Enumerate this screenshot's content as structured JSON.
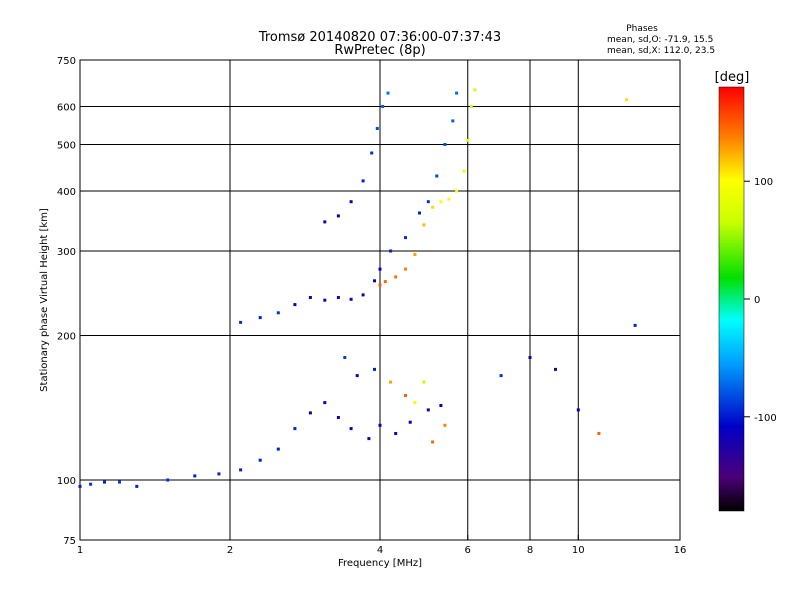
{
  "title_line1": "Tromsø 20140820 07:36:00-07:37:43",
  "title_line2": "RwPretec (8p)",
  "phases": {
    "heading": "Phases",
    "line1": "mean, sd,O: -71.9, 15.5",
    "line2": "mean, sd,X: 112.0, 23.5"
  },
  "colorbar": {
    "label": "[deg]",
    "tick_labels": [
      "100",
      "0",
      "-100"
    ],
    "tick_values": [
      100,
      0,
      -100
    ],
    "range": [
      -180,
      180
    ]
  },
  "chart_data": {
    "type": "scatter",
    "xlabel": "Frequency [MHz]",
    "ylabel": "Stationary phase Virtual Height [km]",
    "x_scale": "log2",
    "y_scale": "log",
    "xlim": [
      1,
      16
    ],
    "ylim": [
      75,
      750
    ],
    "x_tick_labels": [
      "1",
      "2",
      "4",
      "6",
      "8",
      "10",
      "16"
    ],
    "x_tick_values": [
      1,
      2,
      4,
      6,
      8,
      10,
      16
    ],
    "x_major_grid": [
      2,
      4,
      6,
      8,
      10
    ],
    "y_tick_labels": [
      "750",
      "600",
      "500",
      "400",
      "300",
      "200",
      "100",
      "75"
    ],
    "y_tick_values": [
      750,
      600,
      500,
      400,
      300,
      200,
      100,
      75
    ],
    "y_major_grid": [
      600,
      500,
      400,
      300,
      200,
      100
    ],
    "grid": true,
    "series": [
      {
        "points": [
          [
            1.0,
            97,
            -100
          ],
          [
            1.05,
            98,
            -95
          ],
          [
            1.12,
            99,
            -100
          ],
          [
            1.2,
            99,
            -90
          ],
          [
            1.3,
            97,
            -100
          ],
          [
            1.5,
            100,
            -95
          ],
          [
            1.7,
            102,
            -100
          ],
          [
            1.9,
            103,
            -100
          ],
          [
            2.1,
            105,
            -100
          ],
          [
            2.3,
            110,
            -100
          ],
          [
            2.5,
            116,
            -100
          ],
          [
            2.7,
            128,
            -100
          ],
          [
            2.9,
            138,
            -120
          ],
          [
            3.1,
            145,
            -110
          ],
          [
            3.3,
            135,
            -120
          ],
          [
            3.5,
            128,
            -110
          ],
          [
            3.8,
            122,
            -120
          ],
          [
            4.0,
            130,
            -115
          ],
          [
            4.3,
            125,
            -120
          ],
          [
            4.6,
            132,
            -110
          ],
          [
            5.0,
            140,
            -120
          ],
          [
            5.3,
            143,
            -110
          ]
        ]
      },
      {
        "points": [
          [
            2.1,
            213,
            -95
          ],
          [
            2.3,
            218,
            -100
          ],
          [
            2.5,
            223,
            -95
          ],
          [
            2.7,
            232,
            -110
          ],
          [
            2.9,
            240,
            -120
          ],
          [
            3.1,
            237,
            -120
          ],
          [
            3.3,
            240,
            -130
          ],
          [
            3.5,
            238,
            -125
          ],
          [
            3.7,
            243,
            -120
          ],
          [
            3.9,
            260,
            -115
          ],
          [
            4.0,
            275,
            -110
          ],
          [
            4.2,
            300,
            -100
          ],
          [
            4.5,
            320,
            -95
          ],
          [
            4.8,
            360,
            -100
          ],
          [
            5.0,
            380,
            -95
          ],
          [
            5.2,
            430,
            -90
          ],
          [
            5.4,
            500,
            -85
          ],
          [
            5.6,
            560,
            -80
          ],
          [
            5.7,
            640,
            -75
          ]
        ]
      },
      {
        "points": [
          [
            4.0,
            255,
            150
          ],
          [
            4.1,
            259,
            148
          ],
          [
            4.3,
            265,
            145
          ],
          [
            4.5,
            275,
            140
          ],
          [
            4.7,
            295,
            130
          ],
          [
            4.9,
            340,
            120
          ],
          [
            5.1,
            370,
            110
          ],
          [
            5.3,
            380,
            100
          ],
          [
            5.5,
            385,
            95
          ],
          [
            5.7,
            400,
            90
          ],
          [
            5.9,
            440,
            85
          ],
          [
            6.0,
            510,
            80
          ],
          [
            6.1,
            600,
            75
          ],
          [
            6.2,
            650,
            70
          ]
        ]
      },
      {
        "points": [
          [
            3.1,
            345,
            -120
          ],
          [
            3.3,
            355,
            -115
          ],
          [
            3.5,
            380,
            -110
          ],
          [
            3.7,
            420,
            -100
          ],
          [
            3.85,
            480,
            -95
          ],
          [
            3.95,
            540,
            -85
          ],
          [
            4.05,
            600,
            -80
          ],
          [
            4.15,
            640,
            -75
          ]
        ]
      },
      {
        "points": [
          [
            3.4,
            180,
            -90
          ],
          [
            3.6,
            165,
            -120
          ],
          [
            3.9,
            170,
            -100
          ],
          [
            4.2,
            160,
            130
          ],
          [
            4.5,
            150,
            150
          ],
          [
            4.7,
            145,
            90
          ],
          [
            4.9,
            160,
            60
          ],
          [
            5.1,
            120,
            150
          ],
          [
            5.4,
            130,
            140
          ],
          [
            7.0,
            165,
            -95
          ],
          [
            8.0,
            180,
            -120
          ],
          [
            9.0,
            170,
            -130
          ],
          [
            10.0,
            140,
            -110
          ],
          [
            11.0,
            125,
            150
          ],
          [
            12.5,
            620,
            110
          ],
          [
            13.0,
            210,
            -100
          ]
        ]
      }
    ]
  }
}
